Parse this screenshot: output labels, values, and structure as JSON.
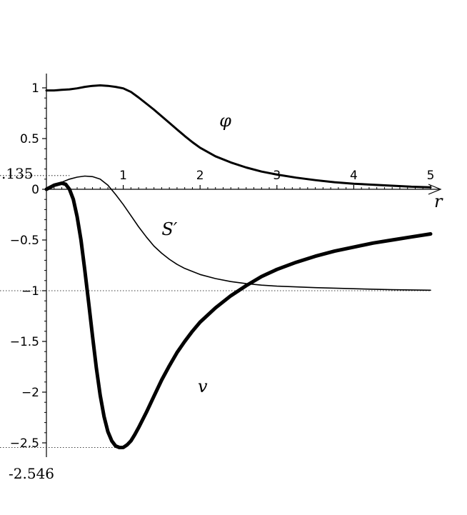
{
  "chart_data": {
    "type": "line",
    "title": "",
    "xlabel": "r",
    "ylabel": "",
    "xlim": [
      0,
      5
    ],
    "ylim": [
      -2.546,
      1.0
    ],
    "x_ticks": [
      "1",
      "2",
      "3",
      "4",
      "5"
    ],
    "y_ticks": [
      "1",
      "0.5",
      "0",
      "−0.5",
      "−1",
      "−1.5",
      "−2",
      "−2.5"
    ],
    "ref_labels": {
      "top": ".135",
      "bottom": "-2.546"
    },
    "reference_lines": [
      0.135,
      -1,
      -2.546
    ],
    "grid": false,
    "legend": "none",
    "series": [
      {
        "name": "φ",
        "x": [
          0,
          0.1,
          0.2,
          0.3,
          0.4,
          0.5,
          0.6,
          0.7,
          0.8,
          0.9,
          1.0,
          1.1,
          1.2,
          1.3,
          1.4,
          1.5,
          1.6,
          1.7,
          1.8,
          1.9,
          2.0,
          2.2,
          2.4,
          2.6,
          2.8,
          3.0,
          3.25,
          3.5,
          3.75,
          4.0,
          4.25,
          4.5,
          4.75,
          5.0
        ],
        "y": [
          0.975,
          0.975,
          0.98,
          0.985,
          0.995,
          1.01,
          1.02,
          1.025,
          1.02,
          1.01,
          0.995,
          0.96,
          0.905,
          0.845,
          0.785,
          0.72,
          0.655,
          0.59,
          0.525,
          0.465,
          0.41,
          0.325,
          0.265,
          0.215,
          0.175,
          0.145,
          0.115,
          0.09,
          0.07,
          0.055,
          0.045,
          0.035,
          0.025,
          0.02
        ]
      },
      {
        "name": "S′",
        "x": [
          0,
          0.1,
          0.2,
          0.3,
          0.4,
          0.5,
          0.6,
          0.7,
          0.8,
          0.9,
          1.0,
          1.1,
          1.2,
          1.3,
          1.4,
          1.5,
          1.6,
          1.7,
          1.8,
          1.9,
          2.0,
          2.2,
          2.4,
          2.6,
          2.8,
          3.0,
          3.5,
          4.0,
          4.5,
          5.0
        ],
        "y": [
          0.0,
          0.03,
          0.07,
          0.1,
          0.12,
          0.13,
          0.125,
          0.1,
          0.04,
          -0.05,
          -0.15,
          -0.26,
          -0.37,
          -0.47,
          -0.56,
          -0.63,
          -0.69,
          -0.74,
          -0.78,
          -0.81,
          -0.84,
          -0.88,
          -0.91,
          -0.93,
          -0.945,
          -0.955,
          -0.97,
          -0.98,
          -0.99,
          -0.995
        ]
      },
      {
        "name": "v",
        "x": [
          0,
          0.1,
          0.2,
          0.25,
          0.3,
          0.35,
          0.4,
          0.45,
          0.5,
          0.55,
          0.6,
          0.65,
          0.7,
          0.75,
          0.8,
          0.85,
          0.9,
          0.95,
          1.0,
          1.05,
          1.1,
          1.15,
          1.2,
          1.3,
          1.4,
          1.5,
          1.6,
          1.7,
          1.8,
          1.9,
          2.0,
          2.2,
          2.4,
          2.6,
          2.8,
          3.0,
          3.25,
          3.5,
          3.75,
          4.0,
          4.25,
          4.5,
          4.75,
          5.0
        ],
        "y": [
          0.0,
          0.04,
          0.06,
          0.05,
          0.0,
          -0.1,
          -0.27,
          -0.5,
          -0.8,
          -1.12,
          -1.45,
          -1.76,
          -2.03,
          -2.24,
          -2.39,
          -2.48,
          -2.53,
          -2.546,
          -2.545,
          -2.52,
          -2.48,
          -2.42,
          -2.35,
          -2.2,
          -2.04,
          -1.88,
          -1.74,
          -1.61,
          -1.5,
          -1.4,
          -1.31,
          -1.17,
          -1.05,
          -0.95,
          -0.86,
          -0.79,
          -0.72,
          -0.66,
          -0.61,
          -0.57,
          -0.53,
          -0.5,
          -0.47,
          -0.44
        ]
      }
    ]
  }
}
